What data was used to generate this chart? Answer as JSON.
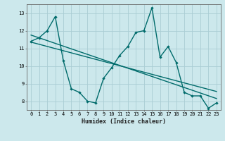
{
  "title": "",
  "xlabel": "Humidex (Indice chaleur)",
  "bg_color": "#cce8ec",
  "grid_color": "#aacdd4",
  "line_color": "#006b6b",
  "line1_x": [
    0,
    1,
    2,
    3,
    4,
    5,
    6,
    7,
    8,
    9,
    10,
    11,
    12,
    13,
    14,
    15,
    16,
    17,
    18,
    19,
    20,
    21,
    22,
    23
  ],
  "line1_y": [
    11.4,
    11.6,
    12.0,
    12.8,
    10.3,
    8.7,
    8.5,
    8.0,
    7.9,
    9.3,
    9.9,
    10.6,
    11.1,
    11.9,
    12.0,
    13.3,
    10.5,
    11.1,
    10.2,
    8.5,
    8.3,
    8.3,
    7.6,
    7.9
  ],
  "line2_x": [
    0,
    23
  ],
  "line2_y": [
    11.75,
    8.15
  ],
  "line3_x": [
    0,
    23
  ],
  "line3_y": [
    11.35,
    8.55
  ],
  "xlim": [
    -0.5,
    23.5
  ],
  "ylim": [
    7.5,
    13.5
  ],
  "yticks": [
    8,
    9,
    10,
    11,
    12,
    13
  ],
  "xticks": [
    0,
    1,
    2,
    3,
    4,
    5,
    6,
    7,
    8,
    9,
    10,
    11,
    12,
    13,
    14,
    15,
    16,
    17,
    18,
    19,
    20,
    21,
    22,
    23
  ],
  "tick_fontsize": 5.0,
  "xlabel_fontsize": 6.0,
  "marker_size": 2.2,
  "line_width": 1.0
}
